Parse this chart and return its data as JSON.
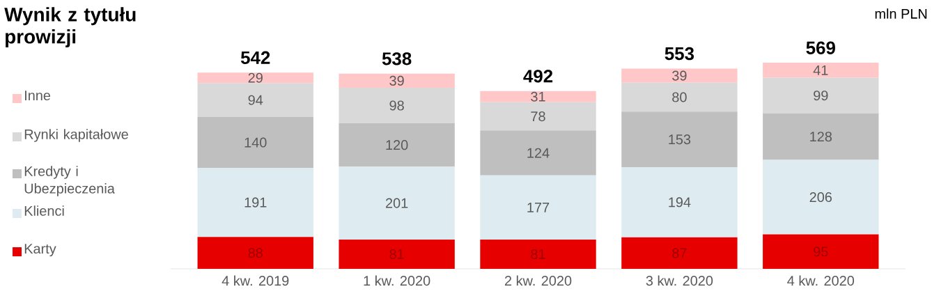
{
  "chart_data": {
    "type": "bar",
    "title": "Wynik z tytułu prowizji",
    "annotations": [
      "mln PLN"
    ],
    "categories": [
      "4 kw. 2019",
      "1 kw. 2020",
      "2 kw. 2020",
      "3 kw. 2020",
      "4 kw. 2020"
    ],
    "stacked": true,
    "data_labels": true,
    "legend": "left",
    "series": [
      {
        "name": "Karty",
        "color": "#e60000",
        "values": [
          88,
          81,
          81,
          87,
          95
        ]
      },
      {
        "name": "Klienci",
        "color": "#deebf0",
        "values": [
          191,
          201,
          177,
          194,
          206
        ]
      },
      {
        "name": "Kredyty i Ubezpieczenia",
        "color": "#bfbfbf",
        "values": [
          140,
          120,
          124,
          153,
          128
        ]
      },
      {
        "name": "Rynki kapitałowe",
        "color": "#d9d9d9",
        "values": [
          94,
          98,
          78,
          80,
          99
        ]
      },
      {
        "name": "Inne",
        "color": "#ffc7c7",
        "values": [
          29,
          39,
          31,
          39,
          41
        ]
      }
    ],
    "totals": [
      "542",
      "538",
      "492",
      "553",
      "569"
    ]
  }
}
